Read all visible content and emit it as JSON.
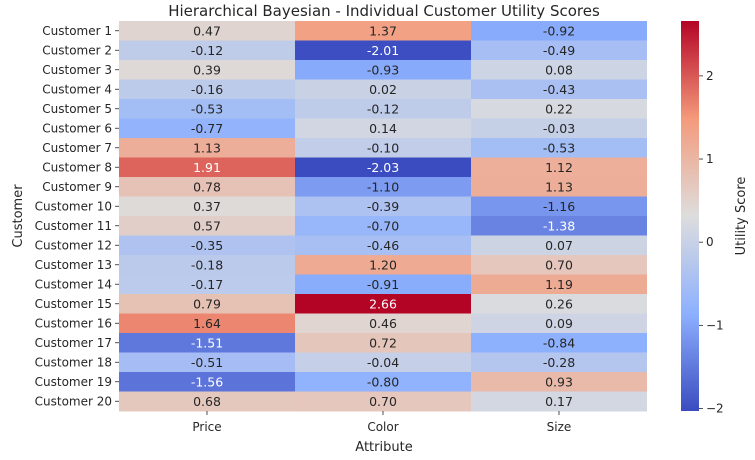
{
  "chart_data": {
    "type": "heatmap",
    "title": "Hierarchical Bayesian - Individual Customer Utility Scores",
    "xlabel": "Attribute",
    "ylabel": "Customer",
    "colorbar_label": "Utility Score",
    "colormap": "coolwarm",
    "vmin": -2.03,
    "vmax": 2.66,
    "colorbar_ticks": [
      "−2",
      "−1",
      "0",
      "1",
      "2"
    ],
    "columns": [
      "Price",
      "Color",
      "Size"
    ],
    "rows": [
      "Customer 1",
      "Customer 2",
      "Customer 3",
      "Customer 4",
      "Customer 5",
      "Customer 6",
      "Customer 7",
      "Customer 8",
      "Customer 9",
      "Customer 10",
      "Customer 11",
      "Customer 12",
      "Customer 13",
      "Customer 14",
      "Customer 15",
      "Customer 16",
      "Customer 17",
      "Customer 18",
      "Customer 19",
      "Customer 20"
    ],
    "values": [
      [
        0.47,
        1.37,
        -0.92
      ],
      [
        -0.12,
        -2.01,
        -0.49
      ],
      [
        0.39,
        -0.93,
        0.08
      ],
      [
        -0.16,
        0.02,
        -0.43
      ],
      [
        -0.53,
        -0.12,
        0.22
      ],
      [
        -0.77,
        0.14,
        -0.03
      ],
      [
        1.13,
        -0.1,
        -0.53
      ],
      [
        1.91,
        -2.03,
        1.12
      ],
      [
        0.78,
        -1.1,
        1.13
      ],
      [
        0.37,
        -0.39,
        -1.16
      ],
      [
        0.57,
        -0.7,
        -1.38
      ],
      [
        -0.35,
        -0.46,
        0.07
      ],
      [
        -0.18,
        1.2,
        0.7
      ],
      [
        -0.17,
        -0.91,
        1.19
      ],
      [
        0.79,
        2.66,
        0.26
      ],
      [
        1.64,
        0.46,
        0.09
      ],
      [
        -1.51,
        0.72,
        -0.84
      ],
      [
        -0.51,
        -0.04,
        -0.28
      ],
      [
        -1.56,
        -0.8,
        0.93
      ],
      [
        0.68,
        0.7,
        0.17
      ]
    ]
  }
}
